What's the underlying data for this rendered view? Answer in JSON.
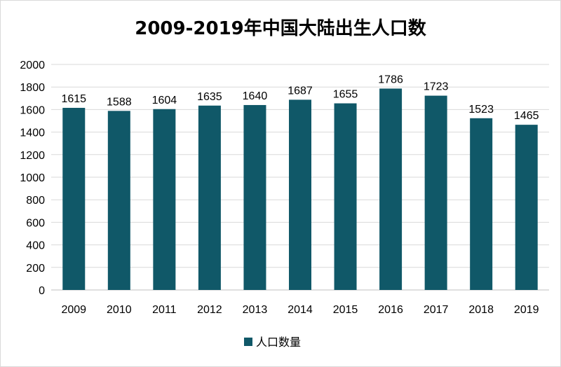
{
  "colors": {
    "bar": "#105868",
    "grid": "#d9d9d9",
    "axis": "#bfbfbf"
  },
  "chart_data": {
    "type": "bar",
    "title": "2009-2019年中国大陆出生人口数",
    "categories": [
      "2009",
      "2010",
      "2011",
      "2012",
      "2013",
      "2014",
      "2015",
      "2016",
      "2017",
      "2018",
      "2019"
    ],
    "series": [
      {
        "name": "人口数量",
        "values": [
          1615,
          1588,
          1604,
          1635,
          1640,
          1687,
          1655,
          1786,
          1723,
          1523,
          1465
        ]
      }
    ],
    "ylim": [
      0,
      2000
    ],
    "yticks": [
      0,
      200,
      400,
      600,
      800,
      1000,
      1200,
      1400,
      1600,
      1800,
      2000
    ],
    "grid": true,
    "legend_position": "bottom",
    "data_labels": true
  }
}
